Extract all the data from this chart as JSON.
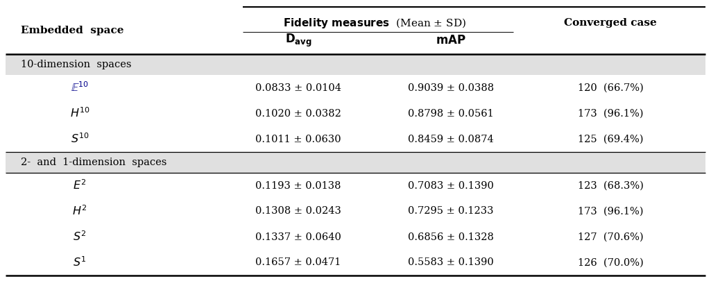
{
  "section1_label": "10-dimension  spaces",
  "section2_label": "2-  and  1-dimension  spaces",
  "rows": [
    {
      "label": "$\\mathbb{E}^{10}$",
      "davg": "0.0833 ± 0.0104",
      "map": "0.9039 ± 0.0388",
      "conv": "120  (66.7%)",
      "section": 1,
      "label_color": "#00008B"
    },
    {
      "label": "$H^{10}$",
      "davg": "0.1020 ± 0.0382",
      "map": "0.8798 ± 0.0561",
      "conv": "173  (96.1%)",
      "section": 1,
      "label_color": "#000000"
    },
    {
      "label": "$S^{10}$",
      "davg": "0.1011 ± 0.0630",
      "map": "0.8459 ± 0.0874",
      "conv": "125  (69.4%)",
      "section": 1,
      "label_color": "#000000"
    },
    {
      "label": "$E^{2}$",
      "davg": "0.1193 ± 0.0138",
      "map": "0.7083 ± 0.1390",
      "conv": "123  (68.3%)",
      "section": 2,
      "label_color": "#000000"
    },
    {
      "label": "$H^{2}$",
      "davg": "0.1308 ± 0.0243",
      "map": "0.7295 ± 0.1233",
      "conv": "173  (96.1%)",
      "section": 2,
      "label_color": "#000000"
    },
    {
      "label": "$S^{2}$",
      "davg": "0.1337 ± 0.0640",
      "map": "0.6856 ± 0.1328",
      "conv": "127  (70.6%)",
      "section": 2,
      "label_color": "#000000"
    },
    {
      "label": "$S^{1}$",
      "davg": "0.1657 ± 0.0471",
      "map": "0.5583 ± 0.1390",
      "conv": "126  (70.0%)",
      "section": 2,
      "label_color": "#000000"
    }
  ],
  "bg_color": "#ffffff",
  "section_bg": "#e0e0e0",
  "font_size": 10.5,
  "font_size_header": 11,
  "font_size_small": 9.5
}
